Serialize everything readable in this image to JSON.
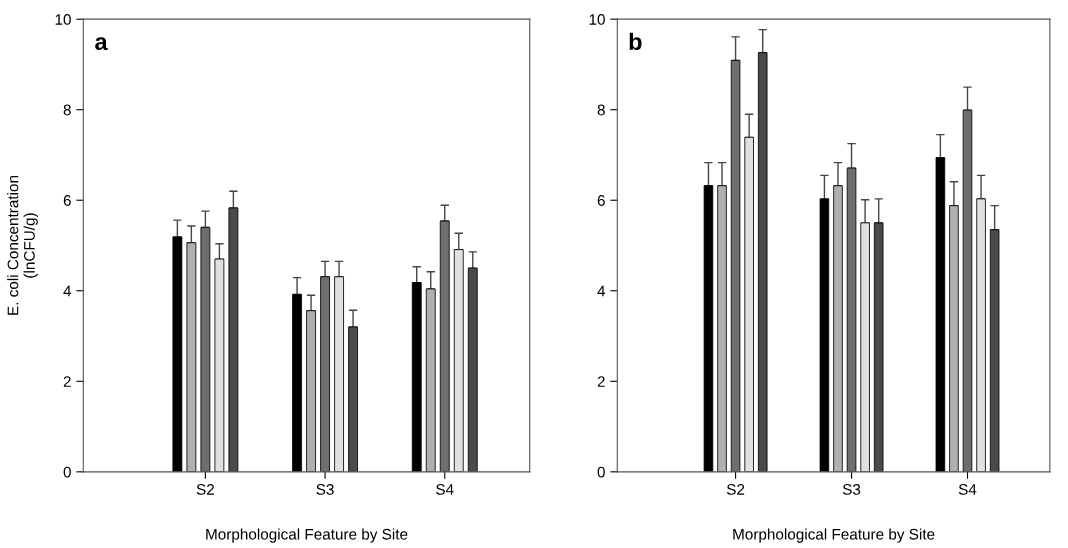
{
  "chart_data": [
    {
      "type": "bar",
      "title": "a",
      "xlabel": "Morphological Feature by Site",
      "ylabel": "E. coli Concentration\n(lnCFU/g)",
      "categories": [
        "S2",
        "S3",
        "S4"
      ],
      "ylim": [
        0,
        10
      ],
      "yticks": [
        0,
        2,
        4,
        6,
        8,
        10
      ],
      "grid": false,
      "series": [
        {
          "color": "#000000",
          "values": [
            5.19,
            3.92,
            4.18
          ],
          "errors": [
            [
              5.19,
              5.56
            ],
            [
              3.92,
              4.29
            ],
            [
              4.18,
              4.53
            ]
          ]
        },
        {
          "color": "#b0b0b0",
          "values": [
            5.06,
            3.56,
            4.04
          ],
          "errors": [
            [
              5.06,
              5.43
            ],
            [
              3.56,
              3.9
            ],
            [
              4.04,
              4.42
            ]
          ]
        },
        {
          "color": "#6e6e6e",
          "values": [
            5.4,
            4.31,
            5.54
          ],
          "errors": [
            [
              5.4,
              5.76
            ],
            [
              4.31,
              4.65
            ],
            [
              5.54,
              5.89
            ]
          ]
        },
        {
          "color": "#e0e0e0",
          "values": [
            4.7,
            4.31,
            4.91
          ],
          "errors": [
            [
              4.7,
              5.04
            ],
            [
              4.31,
              4.65
            ],
            [
              4.91,
              5.27
            ]
          ]
        },
        {
          "color": "#4a4a4a",
          "values": [
            5.83,
            3.2,
            4.5
          ],
          "errors": [
            [
              5.83,
              6.2
            ],
            [
              3.2,
              3.57
            ],
            [
              4.5,
              4.86
            ]
          ]
        }
      ]
    },
    {
      "type": "bar",
      "title": "b",
      "xlabel": "Morphological Feature by Site",
      "categories": [
        "S2",
        "S3",
        "S4"
      ],
      "ylim": [
        0,
        10
      ],
      "yticks": [
        0,
        2,
        4,
        6,
        8,
        10
      ],
      "grid": false,
      "series": [
        {
          "color": "#000000",
          "values": [
            6.32,
            6.03,
            6.94
          ],
          "errors": [
            [
              6.32,
              6.83
            ],
            [
              6.03,
              6.55
            ],
            [
              6.94,
              7.45
            ]
          ]
        },
        {
          "color": "#b0b0b0",
          "values": [
            6.32,
            6.32,
            5.88
          ],
          "errors": [
            [
              6.32,
              6.83
            ],
            [
              6.32,
              6.83
            ],
            [
              5.88,
              6.41
            ]
          ]
        },
        {
          "color": "#6e6e6e",
          "values": [
            9.09,
            6.71,
            7.99
          ],
          "errors": [
            [
              9.09,
              9.61
            ],
            [
              6.71,
              7.25
            ],
            [
              7.99,
              8.5
            ]
          ]
        },
        {
          "color": "#e0e0e0",
          "values": [
            7.39,
            5.5,
            6.03
          ],
          "errors": [
            [
              7.39,
              7.9
            ],
            [
              5.5,
              6.01
            ],
            [
              6.03,
              6.55
            ]
          ]
        },
        {
          "color": "#4a4a4a",
          "values": [
            9.26,
            5.5,
            5.35
          ],
          "errors": [
            [
              9.26,
              9.77
            ],
            [
              5.5,
              6.03
            ],
            [
              5.35,
              5.88
            ]
          ]
        }
      ]
    }
  ]
}
